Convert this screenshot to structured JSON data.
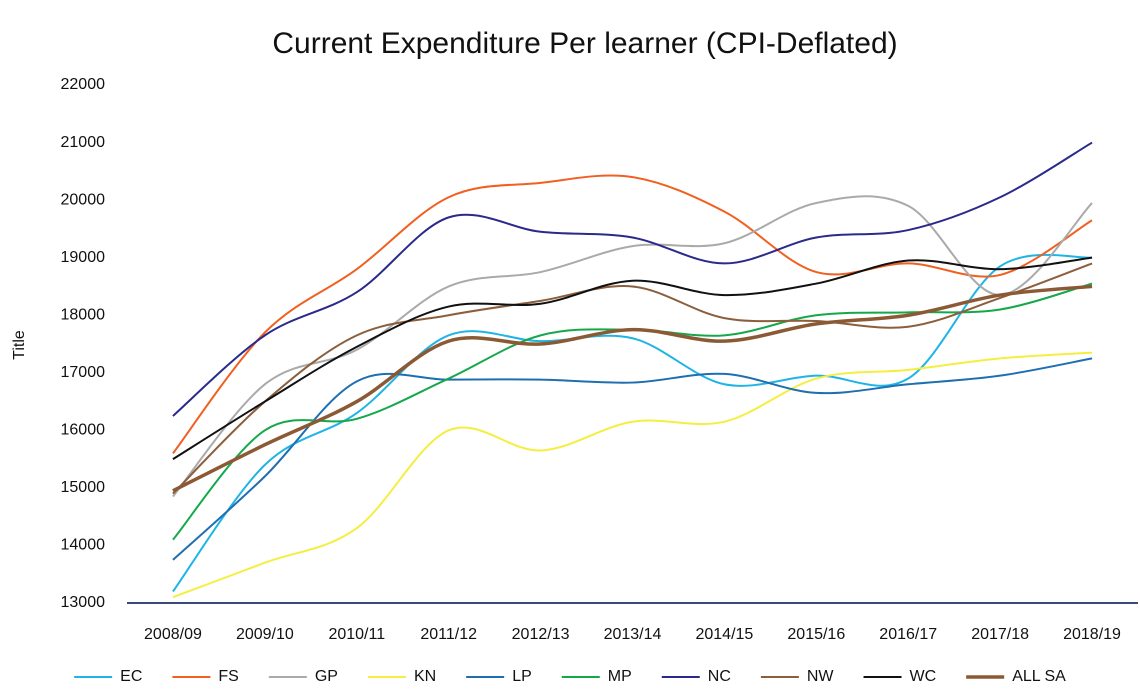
{
  "chart_data": {
    "type": "line",
    "title": "Current Expenditure Per learner (CPI-Deflated)",
    "y_label": "Title",
    "categories": [
      "2008/09",
      "2009/10",
      "2010/11",
      "2011/12",
      "2012/13",
      "2013/14",
      "2014/15",
      "2015/16",
      "2016/17",
      "2017/18",
      "2018/19"
    ],
    "ylim": [
      13000,
      22000
    ],
    "yticks": [
      13000,
      14000,
      15000,
      16000,
      17000,
      18000,
      19000,
      20000,
      21000,
      22000
    ],
    "grid": false,
    "smooth": true,
    "legend": "bottom",
    "series": [
      {
        "name": "EC",
        "color": "#1eb4e6",
        "values": [
          13200,
          15400,
          16300,
          17650,
          17550,
          17600,
          16800,
          16950,
          16900,
          18850,
          19000
        ]
      },
      {
        "name": "FS",
        "color": "#f06020",
        "values": [
          15600,
          17700,
          18800,
          20050,
          20300,
          20400,
          19800,
          18750,
          18900,
          18700,
          19650
        ]
      },
      {
        "name": "GP",
        "color": "#aaaaaa",
        "values": [
          14850,
          16800,
          17400,
          18500,
          18750,
          19200,
          19250,
          19950,
          19900,
          18350,
          19950
        ]
      },
      {
        "name": "KN",
        "color": "#f5ee40",
        "values": [
          13100,
          13700,
          14300,
          16000,
          15650,
          16150,
          16150,
          16900,
          17050,
          17250,
          17350
        ]
      },
      {
        "name": "LP",
        "color": "#1f6fb0",
        "values": [
          13750,
          15200,
          16850,
          16880,
          16880,
          16830,
          16980,
          16650,
          16800,
          16950,
          17250
        ]
      },
      {
        "name": "MP",
        "color": "#14a84a",
        "values": [
          14100,
          16000,
          16200,
          16900,
          17650,
          17750,
          17650,
          18000,
          18050,
          18100,
          18550
        ]
      },
      {
        "name": "NC",
        "color": "#2a2a8a",
        "values": [
          16250,
          17650,
          18400,
          19700,
          19450,
          19350,
          18900,
          19350,
          19480,
          20050,
          21000
        ]
      },
      {
        "name": "NW",
        "color": "#8b5e3c",
        "values": [
          14900,
          16500,
          17650,
          18000,
          18250,
          18500,
          17950,
          17900,
          17800,
          18300,
          18900
        ]
      },
      {
        "name": "WC",
        "color": "#111111",
        "values": [
          15500,
          16500,
          17450,
          18150,
          18200,
          18600,
          18350,
          18550,
          18950,
          18800,
          19000
        ]
      },
      {
        "name": "ALL SA",
        "color": "#8b5a35",
        "width": 3.5,
        "values": [
          14950,
          15750,
          16500,
          17550,
          17500,
          17750,
          17550,
          17850,
          18000,
          18350,
          18500
        ]
      }
    ]
  }
}
